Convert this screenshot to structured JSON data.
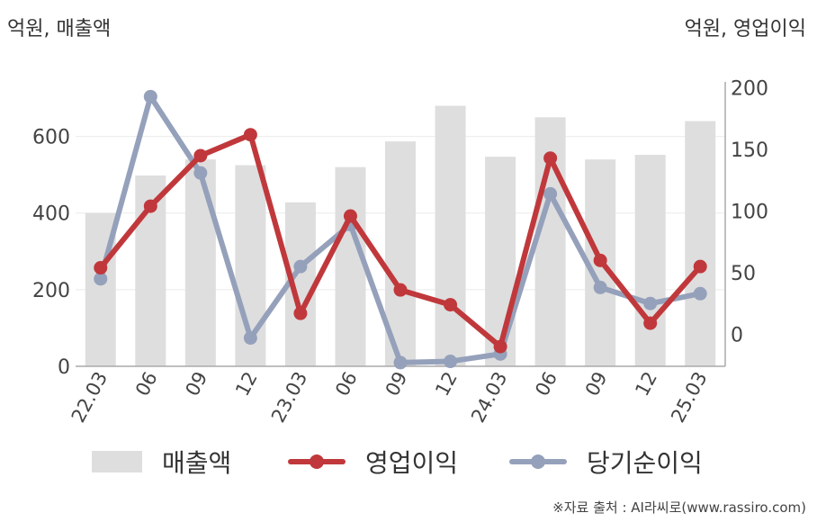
{
  "units": {
    "left": "억원, 매출액",
    "right": "억원, 영업이익"
  },
  "source": "※자료 출처 : AI라씨로(www.rassiro.com)",
  "colors": {
    "sales": "#dedede",
    "operating": "#c0383b",
    "net": "#95a1bb",
    "axis": "#aaaaaa",
    "grid": "#ebebeb",
    "text": "#444444"
  },
  "chart_data": {
    "type": "bar+line",
    "categories": [
      "22.03",
      "06",
      "09",
      "12",
      "23.03",
      "06",
      "09",
      "12",
      "24.03",
      "06",
      "09",
      "12",
      "25.03"
    ],
    "left_axis": {
      "ylim": [
        0,
        733
      ],
      "ticks": [
        0,
        200,
        400,
        600
      ]
    },
    "right_axis": {
      "ylim": [
        -26,
        202
      ],
      "ticks": [
        0,
        50,
        100,
        150,
        200
      ]
    },
    "series": [
      {
        "name": "매출액",
        "type": "bar",
        "axis": "left",
        "values": [
          400,
          498,
          540,
          525,
          428,
          520,
          587,
          680,
          547,
          650,
          540,
          552,
          640
        ]
      },
      {
        "name": "영업이익",
        "type": "line",
        "axis": "right",
        "values": [
          54,
          104,
          145,
          162,
          17,
          96,
          36,
          24,
          -10,
          143,
          60,
          9,
          55
        ]
      },
      {
        "name": "당기순이익",
        "type": "line",
        "axis": "right",
        "values": [
          45,
          193,
          131,
          -3,
          55,
          89,
          -23,
          -22,
          -16,
          114,
          38,
          25,
          33
        ]
      }
    ],
    "legend": "bottom",
    "grid": true
  }
}
